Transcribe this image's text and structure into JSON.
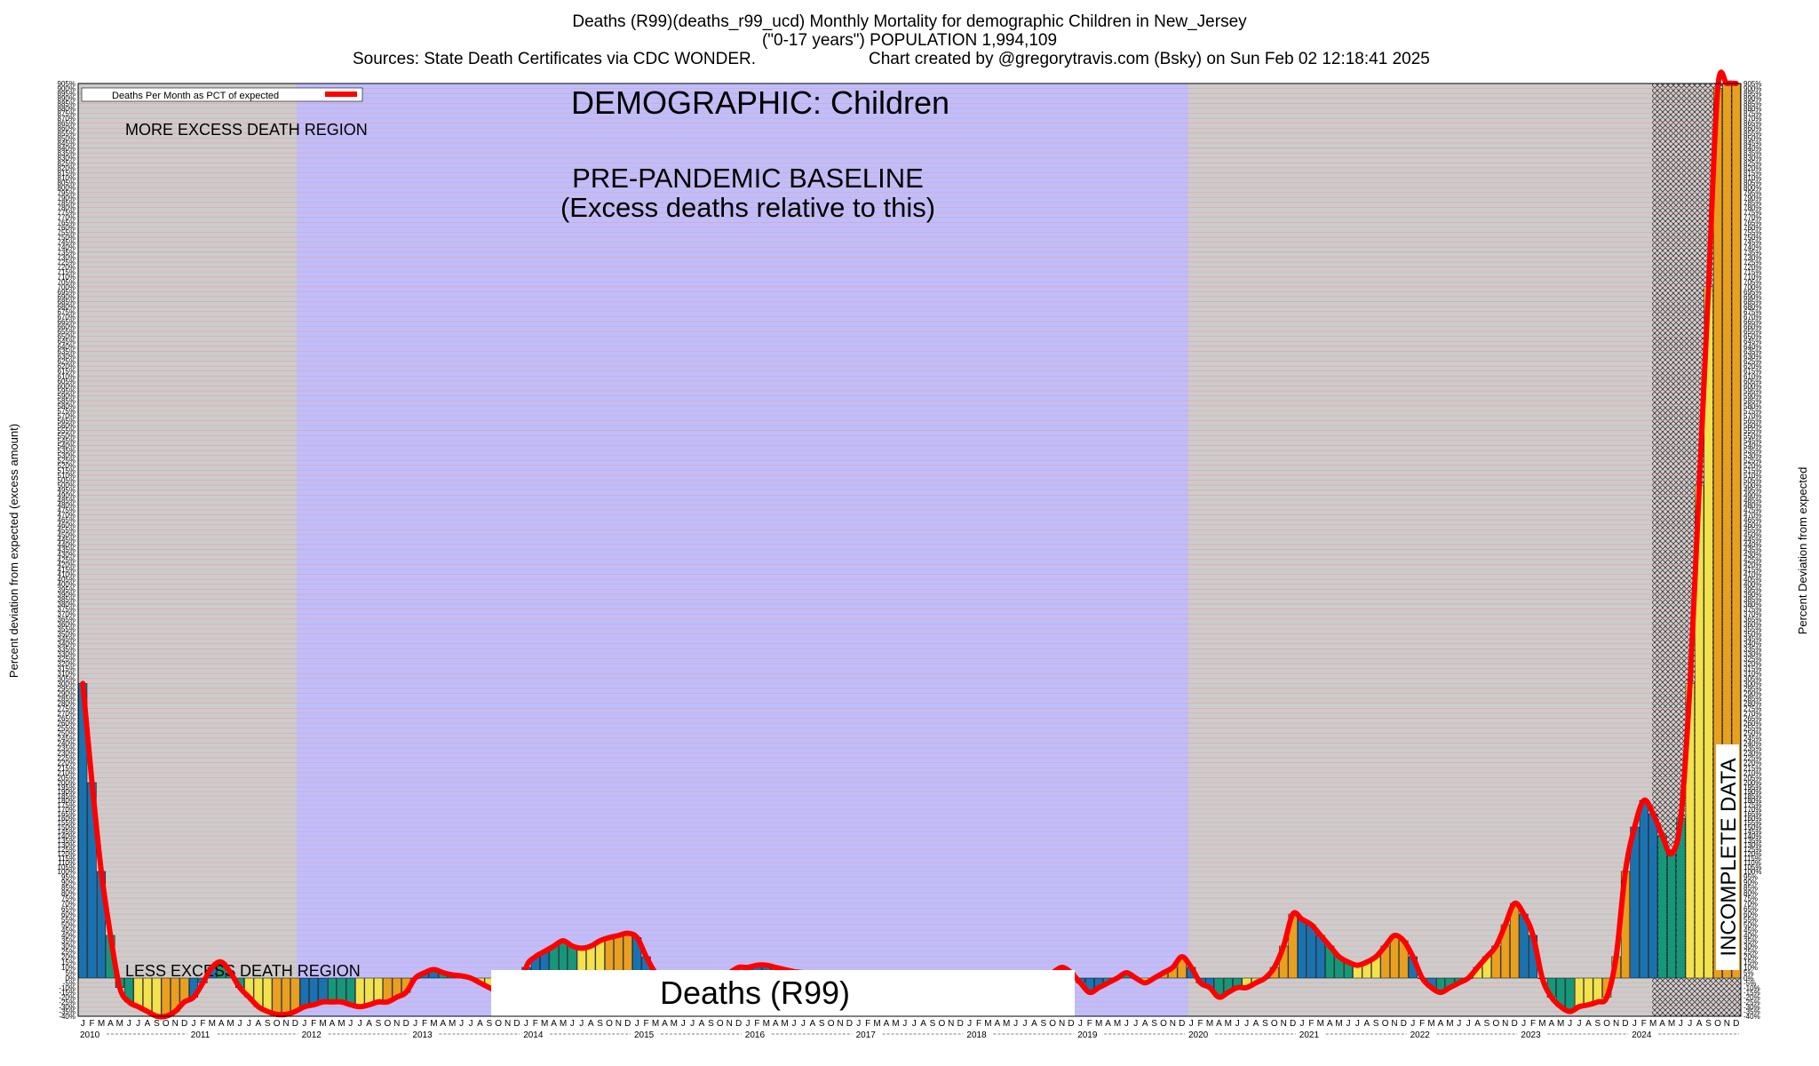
{
  "header": {
    "line1": "Deaths (R99)(deaths_r99_ucd) Monthly Mortality for demographic Children in New_Jersey",
    "line2": "(\"0-17 years\") POPULATION 1,994,109",
    "line3a": "Sources: State Death Certificates via CDC WONDER.",
    "line3b": "Chart created by @gregorytravis.com (Bsky) on Sun Feb 02 12:18:41 2025"
  },
  "annotations": {
    "demographic": "DEMOGRAPHIC: Children",
    "baseline_1": "PRE-PANDEMIC BASELINE",
    "baseline_2": "(Excess deaths relative to this)",
    "more_excess": "MORE EXCESS DEATH REGION",
    "less_excess": "LESS EXCESS DEATH REGION",
    "incomplete": "INCOMPLETE DATA",
    "cause_box": "Deaths (R99)"
  },
  "legend": {
    "label": "Deaths Per Month as PCT of expected",
    "color": "#ff0000"
  },
  "colors": {
    "baseline_region": "#bebeff",
    "excess_region": "#cccccc",
    "gridline": "#e8a0a0",
    "line": "#ff0000",
    "bar_palette": [
      "#1a73b0",
      "#16977a",
      "#f2e24e",
      "#e8a020"
    ]
  },
  "chart_data": {
    "type": "bar",
    "title": "Deaths (R99)(deaths_r99_ucd) Monthly Mortality for demographic Children in New_Jersey",
    "ylabel": "Percent deviation from expected (excess amount)",
    "ylabel_right": "Percent Deviation from expected",
    "y_unit": "%",
    "ylim": [
      -40,
      905
    ],
    "y_scale": "piecewise",
    "y_tick_step": 5,
    "start": "2010-01",
    "years": [
      "2010",
      "2011",
      "2012",
      "2013",
      "2014",
      "2015",
      "2016",
      "2017",
      "2018",
      "2019",
      "2020",
      "2021",
      "2022",
      "2023",
      "2024"
    ],
    "month_letters": [
      "J",
      "F",
      "M",
      "A",
      "M",
      "J",
      "J",
      "A",
      "S",
      "O",
      "N",
      "D"
    ],
    "baseline_years": [
      "2012",
      "2019"
    ],
    "incomplete_from": "2024-03",
    "series": [
      {
        "values": [
          300,
          200,
          100,
          40,
          -10,
          -25,
          -30,
          -35,
          -40,
          -40,
          -35,
          -25,
          -20,
          -5,
          10,
          15,
          5,
          -10,
          -20,
          -30,
          -35,
          -38,
          -38,
          -35,
          -30,
          -28,
          -25,
          -25,
          -25,
          -28,
          -30,
          -28,
          -25,
          -25,
          -20,
          -15,
          0,
          5,
          8,
          5,
          3,
          2,
          0,
          -5,
          -10,
          -15,
          -20,
          -30,
          10,
          20,
          25,
          30,
          35,
          30,
          28,
          30,
          35,
          38,
          40,
          42,
          38,
          20,
          5,
          0,
          -2,
          -3,
          -3,
          0,
          2,
          3,
          5,
          10,
          10,
          12,
          12,
          10,
          8,
          6,
          5,
          3,
          0,
          -2,
          -3,
          -3,
          -5,
          -5,
          -5,
          -5,
          -5,
          -5,
          -5,
          -5,
          -5,
          -5,
          -5,
          -5,
          -3,
          -3,
          -3,
          -3,
          -3,
          -3,
          -2,
          -2,
          0,
          5,
          10,
          5,
          -5,
          -15,
          -10,
          -5,
          0,
          5,
          0,
          -5,
          0,
          5,
          10,
          20,
          10,
          -5,
          -10,
          -20,
          -15,
          -10,
          -10,
          -5,
          0,
          10,
          30,
          60,
          55,
          50,
          40,
          30,
          20,
          15,
          12,
          15,
          20,
          30,
          40,
          35,
          20,
          0,
          -10,
          -15,
          -10,
          -5,
          0,
          10,
          20,
          30,
          50,
          70,
          60,
          40,
          0,
          -20,
          -30,
          -35,
          -30,
          -28,
          -25,
          -20,
          20,
          100,
          150,
          180,
          165,
          140,
          120,
          160,
          300,
          500,
          700,
          900,
          905,
          905
        ]
      }
    ]
  }
}
